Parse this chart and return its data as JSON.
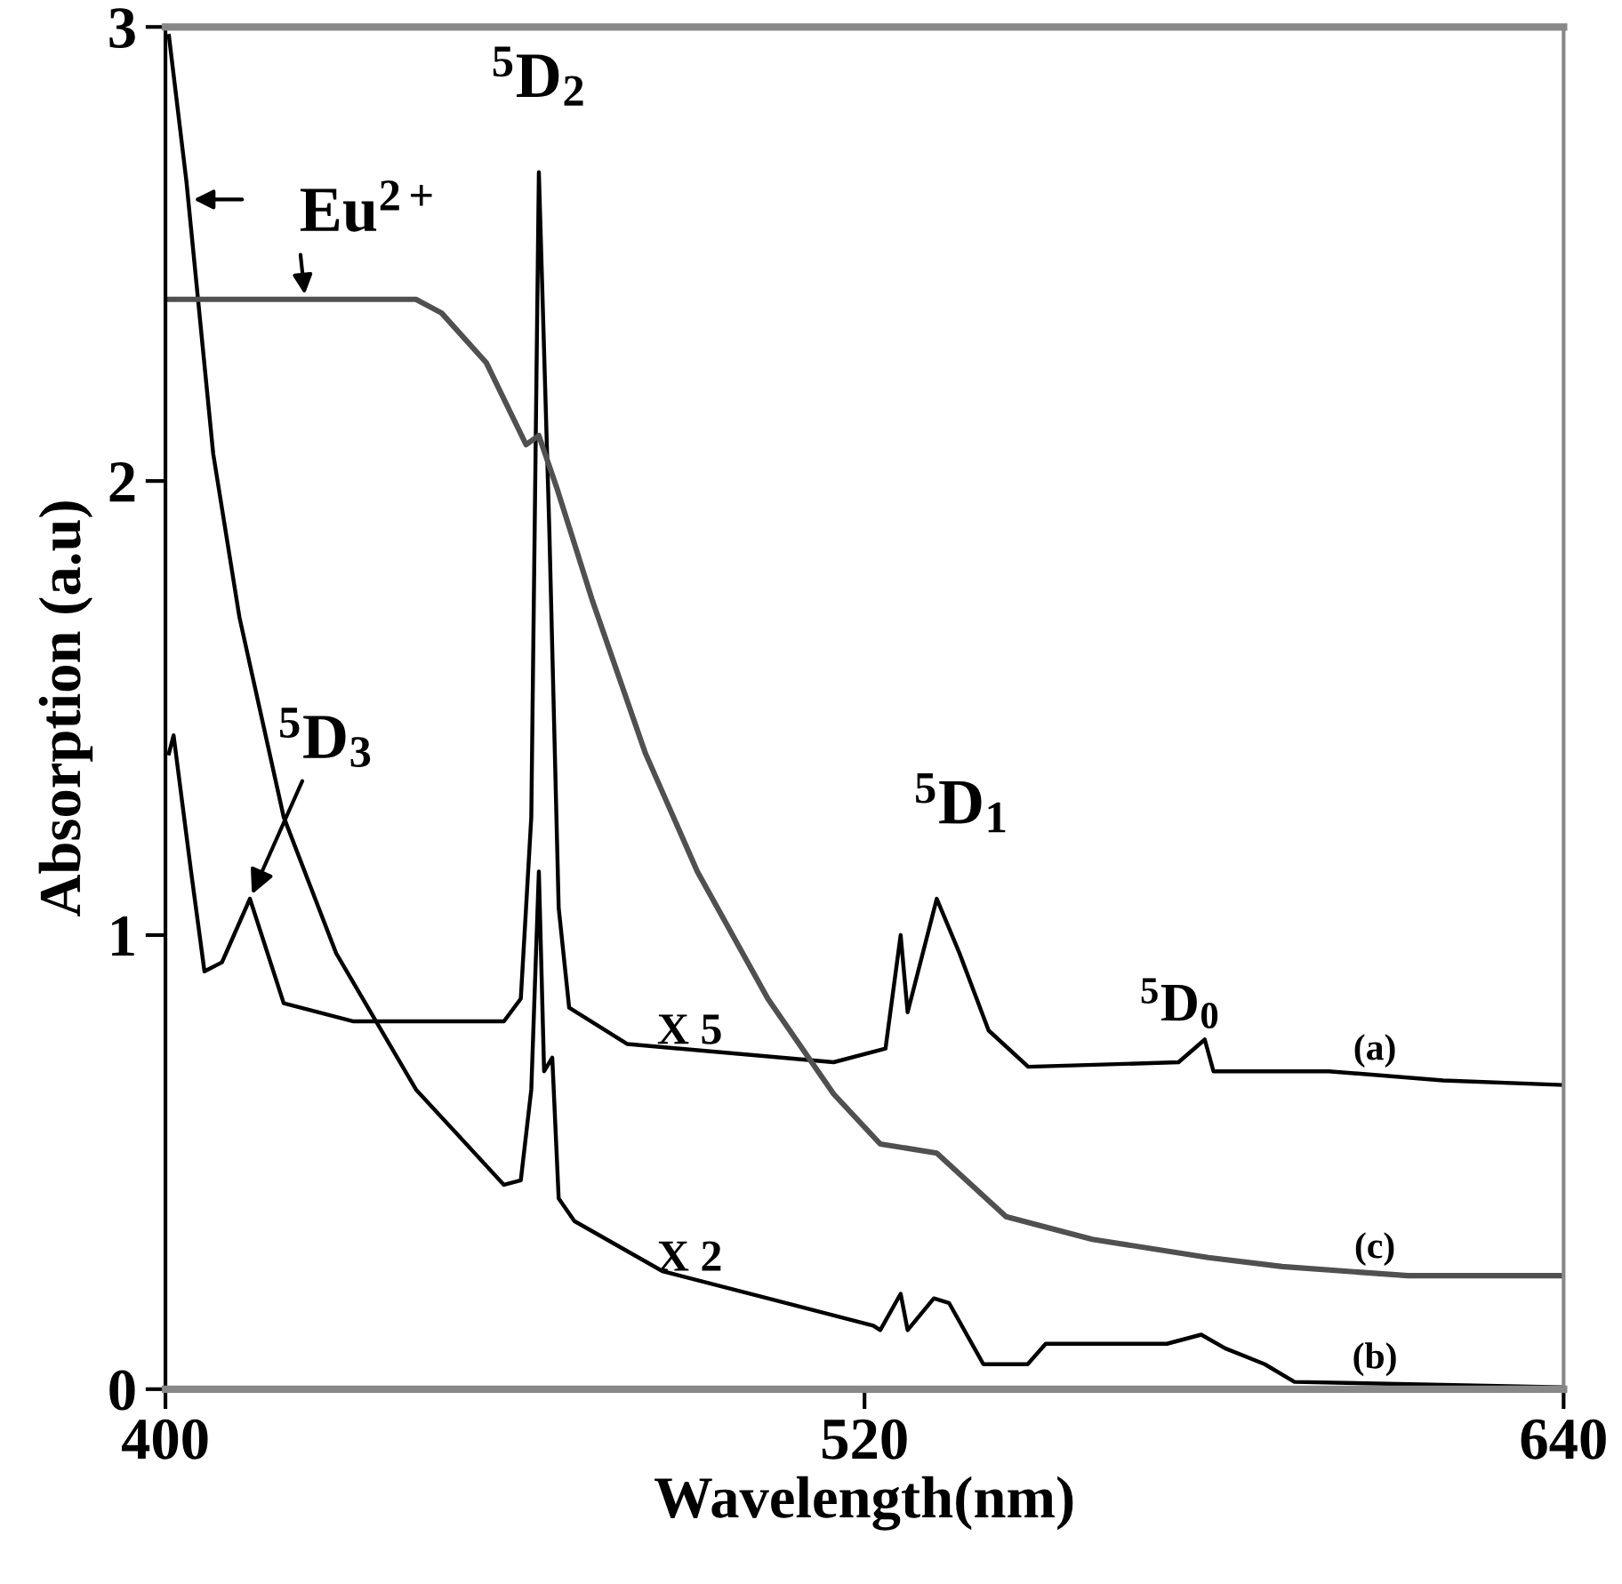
{
  "chart_data": {
    "type": "line",
    "xlabel": "Wavelength(nm)",
    "ylabel": "Absorption (a.u)",
    "xlim": [
      400,
      640
    ],
    "xticks": [
      400,
      520,
      640
    ],
    "ylim": [
      0,
      3
    ],
    "yticks": [
      0,
      1,
      2,
      3
    ],
    "grid": false,
    "legend": false,
    "marker": "none",
    "line_style": "solid",
    "series": [
      {
        "name": "(a)",
        "color": "#000000",
        "x": [
          400.6,
          401.4,
          404.4,
          406.7,
          409.7,
          414.5,
          420.3,
          432.3,
          458.1,
          461.0,
          462.8,
          464.1,
          465.9,
          467.5,
          469.3,
          479.3,
          514.7,
          523.6,
          526.2,
          527.4,
          532.4,
          536.3,
          541.3,
          548.1,
          573.9,
          578.4,
          579.9,
          599.7,
          619.3,
          639.6
        ],
        "values": [
          1.4,
          1.44,
          1.14,
          0.92,
          0.94,
          1.08,
          0.85,
          0.81,
          0.81,
          0.86,
          1.26,
          2.68,
          1.89,
          1.06,
          0.84,
          0.76,
          0.72,
          0.75,
          1.0,
          0.83,
          1.08,
          0.96,
          0.79,
          0.71,
          0.72,
          0.77,
          0.7,
          0.7,
          0.68,
          0.67
        ]
      },
      {
        "name": "(b)",
        "color": "#000000",
        "x": [
          400.6,
          403.6,
          408.2,
          412.7,
          420.3,
          429.3,
          443.0,
          458.1,
          461.0,
          462.8,
          464.1,
          465.0,
          466.4,
          467.5,
          470.2,
          485.3,
          503.4,
          521.5,
          522.7,
          526.2,
          527.4,
          531.9,
          534.5,
          540.4,
          548.0,
          551.1,
          571.9,
          577.8,
          581.9,
          588.7,
          593.8,
          639.6
        ],
        "values": [
          2.98,
          2.66,
          2.06,
          1.7,
          1.26,
          0.96,
          0.66,
          0.45,
          0.46,
          0.66,
          1.14,
          0.7,
          0.73,
          0.42,
          0.37,
          0.26,
          0.2,
          0.14,
          0.13,
          0.21,
          0.13,
          0.2,
          0.19,
          0.055,
          0.055,
          0.1,
          0.1,
          0.12,
          0.09,
          0.055,
          0.016,
          0.004
        ]
      },
      {
        "name": "(c)",
        "color": "#505050",
        "x": [
          400.6,
          443.0,
          447.4,
          455.1,
          461.9,
          464.1,
          467.3,
          473.2,
          482.4,
          491.3,
          503.4,
          514.7,
          522.7,
          532.4,
          544.3,
          559.1,
          579.0,
          591.7,
          613.3,
          639.6
        ],
        "values": [
          2.4,
          2.4,
          2.37,
          2.26,
          2.08,
          2.1,
          1.98,
          1.74,
          1.4,
          1.14,
          0.86,
          0.65,
          0.54,
          0.52,
          0.38,
          0.33,
          0.29,
          0.27,
          0.25,
          0.25
        ]
      }
    ],
    "annotations": [
      {
        "text": "$^{5}$D$_{2}$",
        "x": 464.1,
        "y": 2.68
      },
      {
        "text": "$^{5}$D$_{3}$",
        "x": 414.5,
        "y": 1.08
      },
      {
        "text": "$^{5}$D$_{1}$",
        "x": 532.4,
        "y": 1.08
      },
      {
        "text": "$^{5}$D$_{0}$",
        "x": 578.4,
        "y": 0.77
      },
      {
        "text": "Eu$^{2+}$",
        "x": 424,
        "y": 2.4
      },
      {
        "text": "X 5",
        "x": 490,
        "y": 0.74
      },
      {
        "text": "X 2",
        "x": 490,
        "y": 0.24
      }
    ]
  }
}
